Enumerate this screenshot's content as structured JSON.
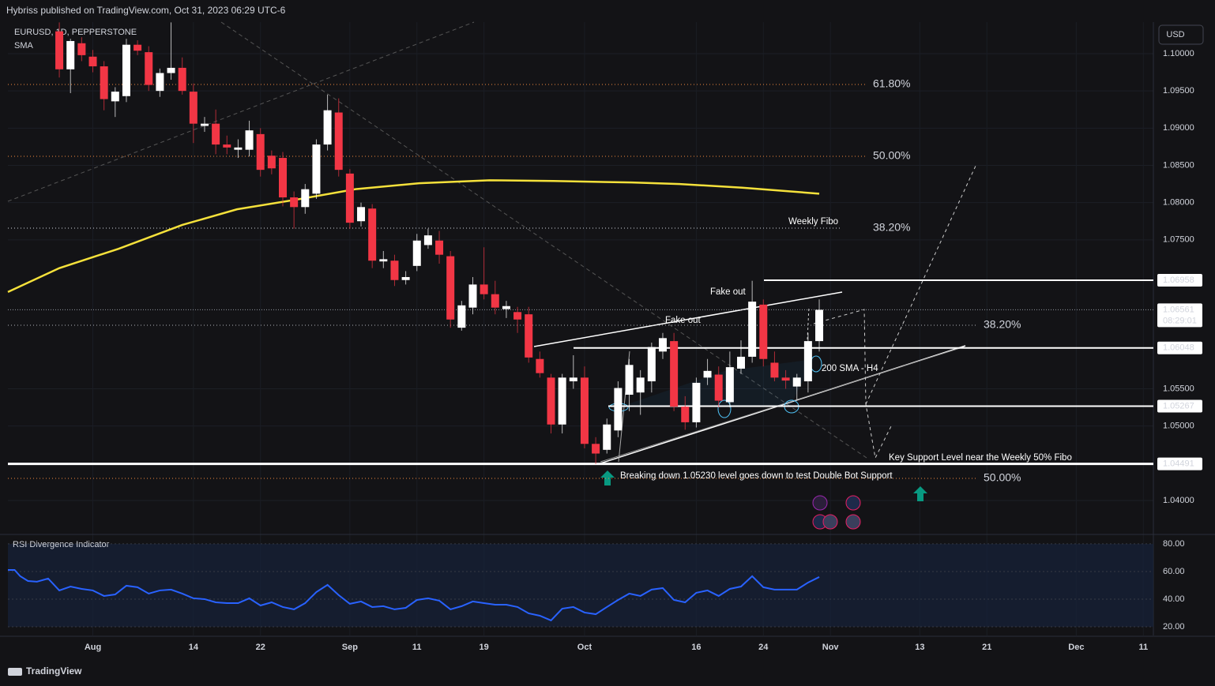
{
  "header": "Hybriss published on TradingView.com, Oct 31, 2023 06:29 UTC-6",
  "footer": "TradingView",
  "currency": "USD",
  "chart_data": [
    {
      "type": "candlestick",
      "title": "EURUSD, 1D, PEPPERSTONE",
      "up_color": "#ffffff",
      "down_color": "#f23645",
      "xlim": [
        -4.6,
        97.9
      ],
      "xticks": [
        {
          "value": 3,
          "label": "Aug"
        },
        {
          "value": 12,
          "label": "14"
        },
        {
          "value": 18,
          "label": "22"
        },
        {
          "value": 26,
          "label": "Sep"
        },
        {
          "value": 32,
          "label": "11"
        },
        {
          "value": 38,
          "label": "19"
        },
        {
          "value": 47,
          "label": "Oct"
        },
        {
          "value": 57,
          "label": "16"
        },
        {
          "value": 63,
          "label": "24"
        },
        {
          "value": 69,
          "label": "Nov"
        },
        {
          "value": 77,
          "label": "13"
        },
        {
          "value": 83,
          "label": "21"
        },
        {
          "value": 91,
          "label": "Dec"
        },
        {
          "value": 97,
          "label": "11"
        }
      ],
      "ylim": [
        1.03565,
        1.10424
      ],
      "yticks": [
        {
          "value": 1.1,
          "label": "1.10000"
        },
        {
          "value": 1.095,
          "label": "1.09500"
        },
        {
          "value": 1.09,
          "label": "1.09000"
        },
        {
          "value": 1.085,
          "label": "1.08500"
        },
        {
          "value": 1.08,
          "label": "1.08000"
        },
        {
          "value": 1.075,
          "label": "1.07500"
        },
        {
          "value": 1.055,
          "label": "1.05500"
        },
        {
          "value": 1.05,
          "label": "1.05000"
        },
        {
          "value": 1.04,
          "label": "1.04000"
        }
      ],
      "open": [
        1.103,
        1.0979,
        1.1014,
        1.0996,
        1.0983,
        1.0936,
        1.0943,
        1.1012,
        1.1002,
        1.095,
        1.0974,
        1.0981,
        1.0949,
        1.0903,
        1.0906,
        1.0878,
        1.0871,
        1.0871,
        1.0892,
        1.0863,
        1.086,
        1.0807,
        1.0794,
        1.0812,
        1.0878,
        1.0921,
        1.0839,
        1.0775,
        1.0792,
        1.0721,
        1.0722,
        1.0696,
        1.0715,
        1.0743,
        1.0749,
        1.0728,
        1.0632,
        1.0659,
        1.069,
        1.0677,
        1.0657,
        1.0653,
        1.065,
        1.059,
        1.0565,
        1.0502,
        1.056,
        1.0565,
        1.0476,
        1.0468,
        1.0494,
        1.0542,
        1.0545,
        1.056,
        1.06,
        1.0614,
        1.0526,
        1.0505,
        1.0565,
        1.0569,
        1.0532,
        1.0577,
        1.0593,
        1.0663,
        1.0585,
        1.0565,
        1.0553,
        1.056,
        1.0614
      ],
      "high": [
        1.1042,
        1.102,
        1.1022,
        1.1005,
        1.099,
        1.0955,
        1.102,
        1.1018,
        1.101,
        1.098,
        1.1042,
        1.0995,
        1.096,
        1.0915,
        1.0925,
        1.089,
        1.0885,
        1.091,
        1.09,
        1.087,
        1.0868,
        1.0815,
        1.0825,
        1.0885,
        1.0945,
        1.094,
        1.0845,
        1.08,
        1.0798,
        1.0735,
        1.073,
        1.0708,
        1.0758,
        1.0765,
        1.0762,
        1.0735,
        1.0668,
        1.07,
        1.074,
        1.0695,
        1.0668,
        1.066,
        1.066,
        1.06,
        1.057,
        1.057,
        1.0595,
        1.058,
        1.0485,
        1.051,
        1.056,
        1.059,
        1.0575,
        1.0612,
        1.0625,
        1.0625,
        1.054,
        1.0565,
        1.059,
        1.058,
        1.06,
        1.0615,
        1.0695,
        1.067,
        1.06,
        1.0575,
        1.057,
        1.0625,
        1.067
      ],
      "low": [
        1.0968,
        1.0947,
        1.099,
        1.0975,
        1.0924,
        1.0915,
        1.0935,
        1.0998,
        1.095,
        1.0942,
        1.0965,
        1.0945,
        1.088,
        1.0895,
        1.0865,
        1.0865,
        1.086,
        1.0862,
        1.0835,
        1.0838,
        1.0795,
        1.0765,
        1.0785,
        1.0805,
        1.087,
        1.0835,
        1.0765,
        1.0768,
        1.0712,
        1.0712,
        1.0688,
        1.069,
        1.0708,
        1.0738,
        1.0718,
        1.0632,
        1.0628,
        1.065,
        1.067,
        1.065,
        1.0645,
        1.0625,
        1.0585,
        1.0565,
        1.049,
        1.049,
        1.055,
        1.047,
        1.0449,
        1.0463,
        1.0485,
        1.052,
        1.0515,
        1.0545,
        1.059,
        1.052,
        1.0495,
        1.0498,
        1.0555,
        1.0525,
        1.0525,
        1.057,
        1.0585,
        1.058,
        1.056,
        1.055,
        1.0535,
        1.0545,
        1.06
      ],
      "close": [
        1.0979,
        1.1017,
        1.0998,
        1.0983,
        1.0939,
        1.0949,
        1.1012,
        1.1004,
        1.0958,
        1.0974,
        1.0981,
        1.095,
        1.0906,
        1.0906,
        1.0878,
        1.0874,
        1.0874,
        1.0897,
        1.0844,
        1.0846,
        1.0807,
        1.0794,
        1.0818,
        1.0878,
        1.0924,
        1.0844,
        1.0773,
        1.0794,
        1.0722,
        1.0724,
        1.0696,
        1.07,
        1.0749,
        1.0756,
        1.073,
        1.0643,
        1.0662,
        1.069,
        1.0677,
        1.0659,
        1.0661,
        1.0643,
        1.0592,
        1.0571,
        1.0502,
        1.0565,
        1.0565,
        1.0476,
        1.0463,
        1.0502,
        1.0551,
        1.0582,
        1.0565,
        1.0606,
        1.0618,
        1.0526,
        1.0505,
        1.0558,
        1.0574,
        1.0534,
        1.0579,
        1.0593,
        1.0667,
        1.059,
        1.0565,
        1.0561,
        1.0565,
        1.0614,
        1.0656
      ],
      "sma": {
        "name": "SMA",
        "color": "#f5e13b",
        "x": [
          -4.6,
          0,
          5.3,
          11,
          15.9,
          21.6,
          26.5,
          32.2,
          38.5,
          44.2,
          51.2,
          55.5,
          61.1,
          68
        ],
        "values": [
          1.068,
          1.0712,
          1.0738,
          1.077,
          1.0791,
          1.0805,
          1.0818,
          1.0826,
          1.083,
          1.0829,
          1.0827,
          1.0825,
          1.082,
          1.0812
        ]
      },
      "price_lines": [
        {
          "value": 1.06958,
          "label": "1.06958"
        },
        {
          "value": 1.06561,
          "label": "1.06561"
        },
        {
          "value": 1.06048,
          "label": "1.06048"
        },
        {
          "value": 1.05267,
          "label": "1.05267"
        },
        {
          "value": 1.04491,
          "label": "1.04491"
        }
      ],
      "countdown": "08:29:01",
      "fib_levels": [
        {
          "value": 1.09587,
          "label": "61.80%",
          "color": "#f0883e"
        },
        {
          "value": 1.08622,
          "label": "50.00%",
          "color": "#f0883e"
        },
        {
          "value": 1.07657,
          "label": "38.20%",
          "color": "#d1d4dc"
        },
        {
          "value": 1.06353,
          "label": "38.20%",
          "color": "#b0b3ba"
        },
        {
          "value": 1.04297,
          "label": "50.00%",
          "color": "#f0883e"
        }
      ],
      "annotations": [
        "Weekly Fibo",
        "Fake out",
        "Fake out",
        "200 SMA - H4",
        "Key Support Level near the Weekly 50% Fibo",
        "Breaking down 1.05230 level goes down to test Double Bot Support"
      ]
    },
    {
      "type": "line",
      "title": "RSI Divergence Indicator",
      "color": "#2962ff",
      "ylim": [
        13.7,
        85.1
      ],
      "yticks": [
        {
          "value": 80,
          "label": "80.00"
        },
        {
          "value": 60,
          "label": "60.00"
        },
        {
          "value": 40,
          "label": "40.00"
        },
        {
          "value": 20,
          "label": "20.00"
        }
      ],
      "x": [
        -4.6,
        -4,
        -3.5,
        -2.8,
        -2,
        -1,
        0,
        1,
        2,
        3,
        4,
        5,
        6,
        7,
        8,
        9,
        10,
        11,
        12,
        13,
        14,
        15,
        16,
        17,
        18,
        19,
        20,
        21,
        22,
        23,
        24,
        25,
        26,
        27,
        28,
        29,
        30,
        31,
        32,
        33,
        34,
        35,
        36,
        37,
        38,
        39,
        40,
        41,
        42,
        43,
        44,
        45,
        46,
        47,
        48,
        49,
        50,
        51,
        52,
        53,
        54,
        55,
        56,
        57,
        58,
        59,
        60,
        61,
        62,
        63,
        64,
        65,
        66,
        67,
        68
      ],
      "values": [
        61.1,
        61.1,
        56.6,
        53.1,
        52.6,
        54.9,
        46.3,
        49.1,
        47.4,
        46.3,
        42.3,
        43.4,
        49.7,
        48.6,
        44,
        46.3,
        46.9,
        44,
        40.6,
        40,
        37.7,
        37.1,
        37.1,
        40.6,
        35.4,
        37.7,
        34.3,
        32.6,
        37.1,
        45.1,
        50.3,
        42.9,
        36.6,
        38.3,
        34.3,
        34.9,
        32.6,
        33.7,
        39.4,
        40.6,
        38.9,
        32.6,
        34.9,
        38.3,
        37.1,
        36,
        36,
        34.3,
        29.7,
        28,
        24.6,
        33.1,
        34.3,
        30.3,
        29.1,
        34.3,
        39.4,
        44,
        42.3,
        46.9,
        48,
        39.4,
        37.7,
        44.6,
        46.3,
        42.3,
        47.4,
        49.1,
        56.6,
        48.6,
        46.9,
        46.9,
        46.9,
        52,
        56
      ]
    }
  ]
}
